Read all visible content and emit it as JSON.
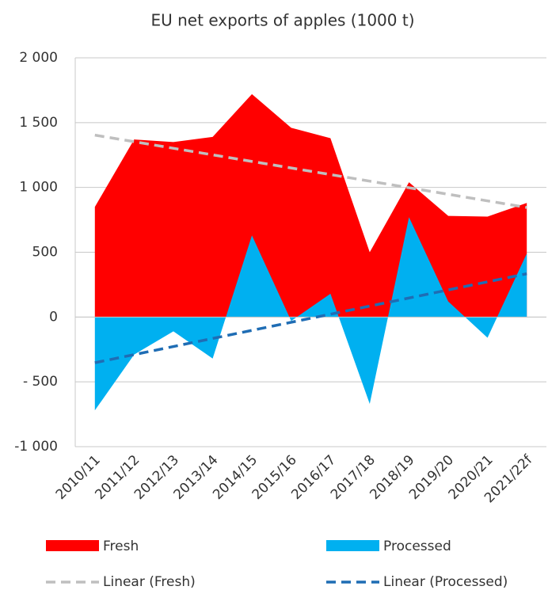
{
  "chart_data": {
    "type": "area",
    "title": "EU net exports of apples (1000 t)",
    "categories": [
      "2010/11",
      "2011/12",
      "2012/13",
      "2013/14",
      "2014/15",
      "2015/16",
      "2016/17",
      "2017/18",
      "2018/19",
      "2019/20",
      "2020/21",
      "2021/22f"
    ],
    "series": [
      {
        "name": "Fresh",
        "color": "#ff0000",
        "values": [
          850,
          1370,
          1350,
          1390,
          1720,
          1460,
          1380,
          500,
          1040,
          780,
          775,
          880
        ],
        "trendline": {
          "name": "Linear (Fresh)",
          "color": "#bfbfbf"
        }
      },
      {
        "name": "Processed",
        "color": "#00b0f0",
        "values": [
          -720,
          -290,
          -110,
          -320,
          630,
          -30,
          180,
          -670,
          770,
          120,
          -160,
          490
        ],
        "trendline": {
          "name": "Linear (Processed)",
          "color": "#1f6db4"
        }
      }
    ],
    "ylim": [
      -1000,
      2000
    ],
    "yticks": [
      {
        "value": -1000,
        "label": "-1 000"
      },
      {
        "value": -500,
        "label": "- 500"
      },
      0,
      500,
      {
        "value": 1000,
        "label": "1 000"
      },
      {
        "value": 1500,
        "label": "1 500"
      },
      {
        "value": 2000,
        "label": "2 000"
      }
    ],
    "grid": true
  }
}
